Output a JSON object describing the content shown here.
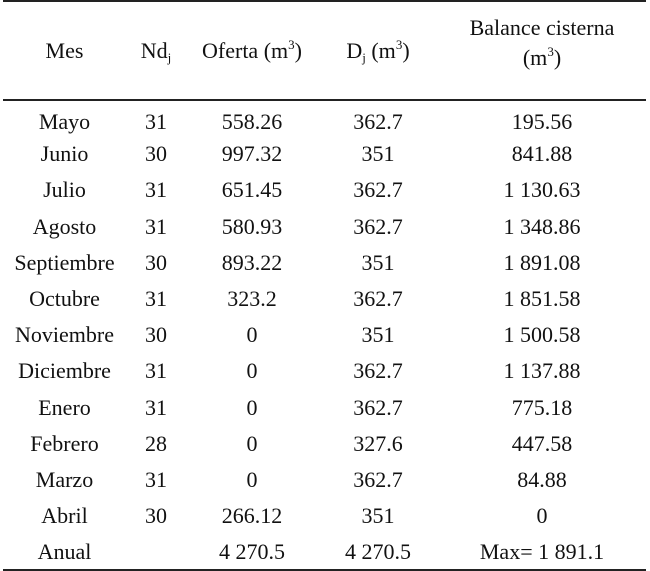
{
  "header": {
    "mes": "Mes",
    "nd": {
      "base": "Nd",
      "sub": "j"
    },
    "oferta": {
      "base": "Oferta (m",
      "sup": "3",
      "close": ")"
    },
    "demanda": {
      "base": "D",
      "sub": "j",
      "mid": " (m",
      "sup": "3",
      "close": ")"
    },
    "balance": {
      "line1": "Balance cisterna",
      "open": "(m",
      "sup": "3",
      "close": ")"
    }
  },
  "rows": [
    {
      "mes": "Mayo",
      "nd": "31",
      "oferta": "558.26",
      "d": "362.7",
      "balance": "195.56"
    },
    {
      "mes": "Junio",
      "nd": "30",
      "oferta": "997.32",
      "d": "351",
      "balance": "841.88"
    },
    {
      "mes": "Julio",
      "nd": "31",
      "oferta": "651.45",
      "d": "362.7",
      "balance": "1 130.63"
    },
    {
      "mes": "Agosto",
      "nd": "31",
      "oferta": "580.93",
      "d": "362.7",
      "balance": "1 348.86"
    },
    {
      "mes": "Septiembre",
      "nd": "30",
      "oferta": "893.22",
      "d": "351",
      "balance": "1 891.08"
    },
    {
      "mes": "Octubre",
      "nd": "31",
      "oferta": "323.2",
      "d": "362.7",
      "balance": "1 851.58"
    },
    {
      "mes": "Noviembre",
      "nd": "30",
      "oferta": "0",
      "d": "351",
      "balance": "1 500.58"
    },
    {
      "mes": "Diciembre",
      "nd": "31",
      "oferta": "0",
      "d": "362.7",
      "balance": "1 137.88"
    },
    {
      "mes": "Enero",
      "nd": "31",
      "oferta": "0",
      "d": "362.7",
      "balance": "775.18"
    },
    {
      "mes": "Febrero",
      "nd": "28",
      "oferta": "0",
      "d": "327.6",
      "balance": "447.58"
    },
    {
      "mes": "Marzo",
      "nd": "31",
      "oferta": "0",
      "d": "362.7",
      "balance": "84.88"
    },
    {
      "mes": "Abril",
      "nd": "30",
      "oferta": "266.12",
      "d": "351",
      "balance": "0"
    }
  ],
  "annual": {
    "mes": "Anual",
    "nd": "",
    "oferta": "4 270.5",
    "d": "4 270.5",
    "balance": "Max= 1 891.1"
  }
}
